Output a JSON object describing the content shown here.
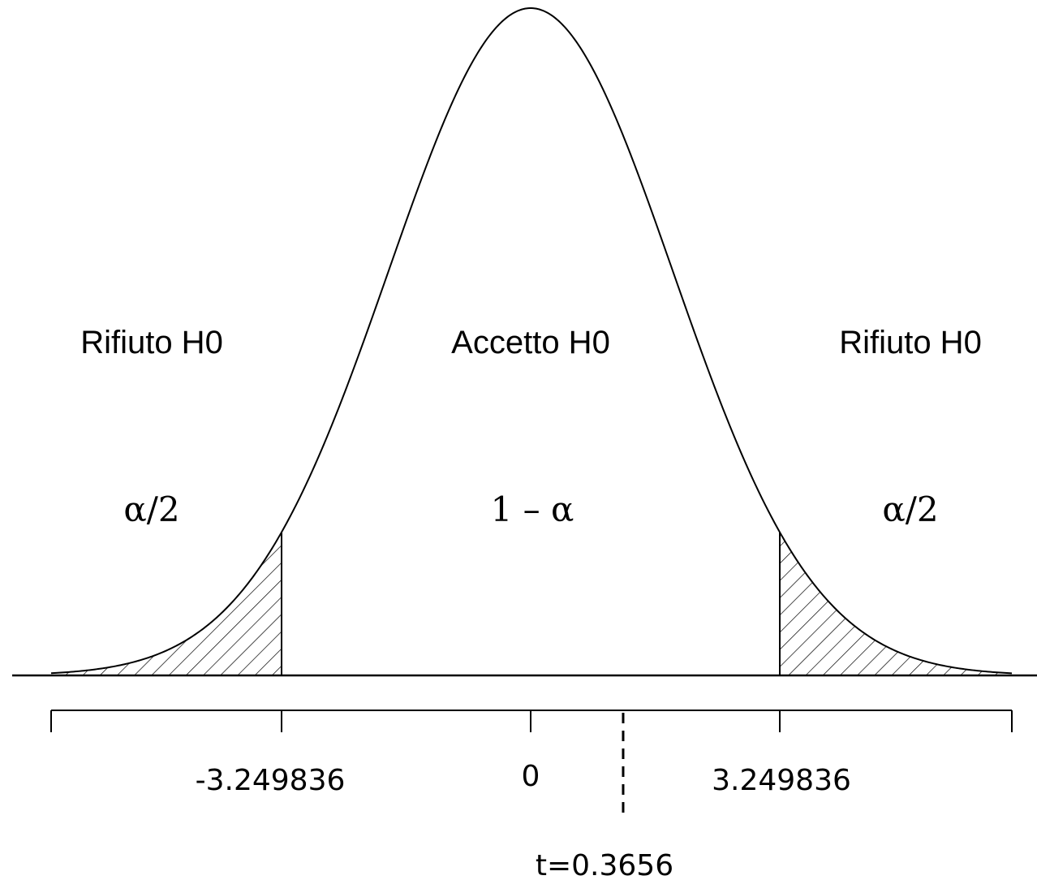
{
  "labels": {
    "reject_left": "Rifiuto H0",
    "accept_center": "Accetto H0",
    "reject_right": "Rifiuto H0",
    "alpha_left": "α/2",
    "confidence_center": "1 – α",
    "alpha_right": "α/2"
  },
  "axis": {
    "tick_lower": "-3.249836",
    "tick_zero": "0",
    "tick_upper": "3.249836",
    "t_statistic": "t=0.3656"
  },
  "values": {
    "critical_lower": -3.249836,
    "critical_upper": 3.249836,
    "t_value": 0.3656
  },
  "colors": {
    "line": "#000000",
    "background": "#ffffff"
  }
}
